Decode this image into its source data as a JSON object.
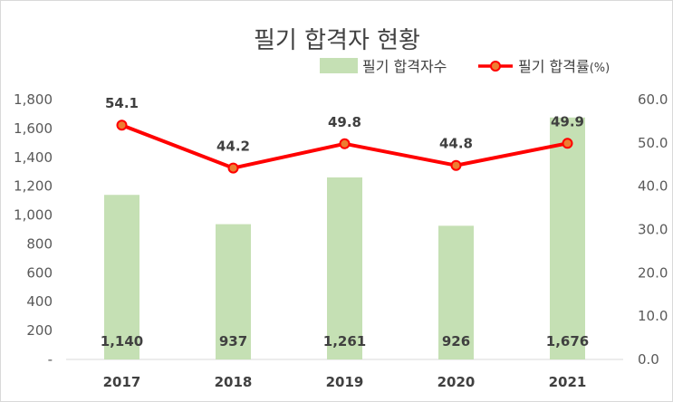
{
  "chart_data": {
    "type": "bar",
    "title": "필기 합격자 현황",
    "categories": [
      "2017",
      "2018",
      "2019",
      "2020",
      "2021"
    ],
    "series": [
      {
        "name": "필기 합격자수",
        "type": "bar",
        "axis": "left",
        "values": [
          1140,
          937,
          1261,
          926,
          1676
        ],
        "value_labels": [
          "1,140",
          "937",
          "1,261",
          "926",
          "1,676"
        ],
        "color": "#c5e0b4"
      },
      {
        "name": "필기 합격률",
        "unit": "(%)",
        "type": "line",
        "axis": "right",
        "values": [
          54.1,
          44.2,
          49.8,
          44.8,
          49.9
        ],
        "value_labels": [
          "54.1",
          "44.2",
          "49.8",
          "44.8",
          "49.9"
        ],
        "color": "#ff0000",
        "marker_fill": "#ed7d31"
      }
    ],
    "y_left": {
      "min": 0,
      "max": 1800,
      "step": 200,
      "tick_labels": [
        "-",
        "200",
        "400",
        "600",
        "800",
        "1,000",
        "1,200",
        "1,400",
        "1,600",
        "1,800"
      ]
    },
    "y_right": {
      "min": 0,
      "max": 60,
      "step": 10,
      "tick_labels": [
        "0.0",
        "10.0",
        "20.0",
        "30.0",
        "40.0",
        "50.0",
        "60.0"
      ]
    },
    "grid": false,
    "legend_position": "top-right"
  }
}
